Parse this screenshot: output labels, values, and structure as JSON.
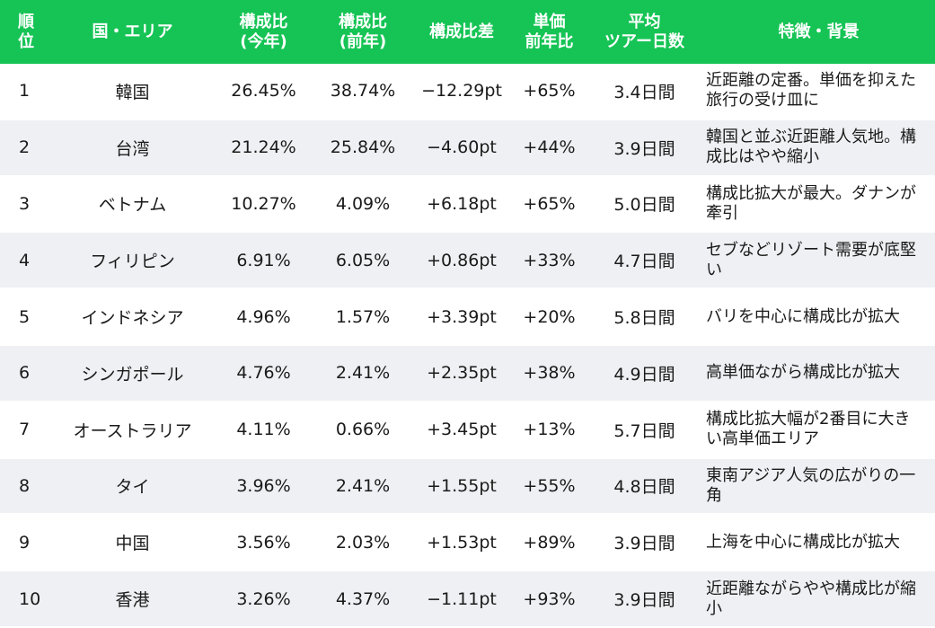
{
  "header": {
    "rank": "順\n位",
    "area": "国・エリア",
    "share_this_year": "構成比\n(今年)",
    "share_last_year": "構成比\n(前年)",
    "share_diff": "構成比差",
    "unit_price_yoy": "単価\n前年比",
    "avg_tour_days": "平均\nツアー日数",
    "feature": "特徴・背景"
  },
  "rows": [
    {
      "rank": "1",
      "area": "韓国",
      "share": "26.45%",
      "prev": "38.74%",
      "diff": "−12.29pt",
      "price": "+65%",
      "days": "3.4日間",
      "feature": "近距離の定番。単価を抑えた旅行の受け皿に"
    },
    {
      "rank": "2",
      "area": "台湾",
      "share": "21.24%",
      "prev": "25.84%",
      "diff": "−4.60pt",
      "price": "+44%",
      "days": "3.9日間",
      "feature": "韓国と並ぶ近距離人気地。構成比はやや縮小"
    },
    {
      "rank": "3",
      "area": "ベトナム",
      "share": "10.27%",
      "prev": "4.09%",
      "diff": "+6.18pt",
      "price": "+65%",
      "days": "5.0日間",
      "feature": "構成比拡大が最大。ダナンが牽引"
    },
    {
      "rank": "4",
      "area": "フィリピン",
      "share": "6.91%",
      "prev": "6.05%",
      "diff": "+0.86pt",
      "price": "+33%",
      "days": "4.7日間",
      "feature": "セブなどリゾート需要が底堅い"
    },
    {
      "rank": "5",
      "area": "インドネシア",
      "share": "4.96%",
      "prev": "1.57%",
      "diff": "+3.39pt",
      "price": "+20%",
      "days": "5.8日間",
      "feature": "バリを中心に構成比が拡大"
    },
    {
      "rank": "6",
      "area": "シンガポール",
      "share": "4.76%",
      "prev": "2.41%",
      "diff": "+2.35pt",
      "price": "+38%",
      "days": "4.9日間",
      "feature": "高単価ながら構成比が拡大"
    },
    {
      "rank": "7",
      "area": "オーストラリア",
      "share": "4.11%",
      "prev": "0.66%",
      "diff": "+3.45pt",
      "price": "+13%",
      "days": "5.7日間",
      "feature": "構成比拡大幅が2番目に大きい高単価エリア"
    },
    {
      "rank": "8",
      "area": "タイ",
      "share": "3.96%",
      "prev": "2.41%",
      "diff": "+1.55pt",
      "price": "+55%",
      "days": "4.8日間",
      "feature": "東南アジア人気の広がりの一角"
    },
    {
      "rank": "9",
      "area": "中国",
      "share": "3.56%",
      "prev": "2.03%",
      "diff": "+1.53pt",
      "price": "+89%",
      "days": "3.9日間",
      "feature": "上海を中心に構成比が拡大"
    },
    {
      "rank": "10",
      "area": "香港",
      "share": "3.26%",
      "prev": "4.37%",
      "diff": "−1.11pt",
      "price": "+93%",
      "days": "3.9日間",
      "feature": "近距離ながらやや構成比が縮小"
    }
  ],
  "colors": {
    "header_bg": "#16c455",
    "header_text": "#ffffff",
    "row_alt_bg": "#eef0f3"
  }
}
